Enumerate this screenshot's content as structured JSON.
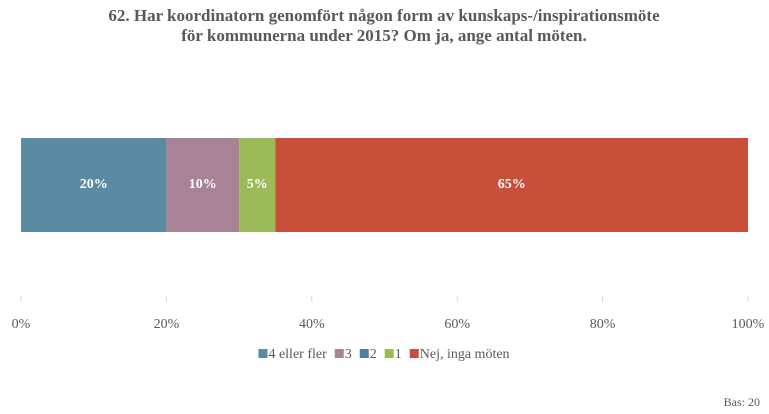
{
  "chart_data": {
    "type": "stacked_bar_horizontal",
    "title": "62. Har koordinatorn genomfört någon form av kunskaps-/inspirationsmöte för kommunerna under 2015? Om ja, ange antal möten.",
    "series": [
      {
        "name": "4 eller fler",
        "color": "#5b8aa3",
        "values": [
          20
        ],
        "value_labels": [
          "20%"
        ]
      },
      {
        "name": "3",
        "color": "#a88396",
        "values": [
          10
        ],
        "value_labels": [
          "10%"
        ]
      },
      {
        "name": "2",
        "color": "#4f7f9c",
        "values": [
          0
        ]
      },
      {
        "name": "1",
        "color": "#9bbb59",
        "values": [
          5
        ],
        "value_labels": [
          "5%"
        ]
      },
      {
        "name": "Nej, inga möten",
        "color": "#c8503a",
        "values": [
          65
        ],
        "value_labels": [
          "65%"
        ]
      }
    ],
    "xlim": [
      0,
      100
    ],
    "xticks": [
      {
        "value": 0,
        "label": "0%"
      },
      {
        "value": 20,
        "label": "20%"
      },
      {
        "value": 40,
        "label": "40%"
      },
      {
        "value": 60,
        "label": "60%"
      },
      {
        "value": 80,
        "label": "80%"
      },
      {
        "value": 100,
        "label": "100%"
      }
    ],
    "legend": "bottom",
    "footnote": "Bas: 20"
  }
}
